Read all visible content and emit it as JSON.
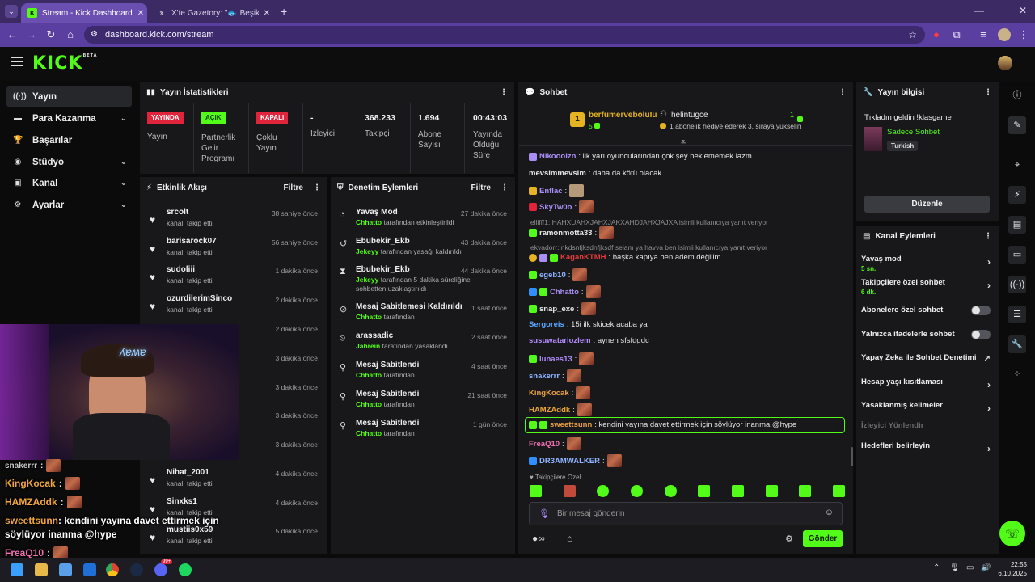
{
  "browser": {
    "tabs": [
      {
        "title": "Stream - Kick Dashboard"
      },
      {
        "title": "X'te Gazetory: \"🐟 Beşiktaşlı bi"
      }
    ],
    "url": "dashboard.kick.com/stream"
  },
  "brand": {
    "logo": "KICK",
    "beta": "BETA",
    "accent": "#53fc18"
  },
  "nav": {
    "items": [
      {
        "label": "Yayın",
        "icon": "broadcast-icon"
      },
      {
        "label": "Para Kazanma",
        "icon": "wallet-icon"
      },
      {
        "label": "Başarılar",
        "icon": "trophy-icon"
      },
      {
        "label": "Stüdyo",
        "icon": "studio-icon"
      },
      {
        "label": "Kanal",
        "icon": "channel-icon"
      },
      {
        "label": "Ayarlar",
        "icon": "gear-icon"
      }
    ]
  },
  "stats": {
    "title": "Yayın İstatistikleri",
    "live_badge": "YAYINDA",
    "live_label": "Yayın",
    "partner_badge": "AÇIK",
    "partner_label": "Partnerlik Gelir Programı",
    "multi_badge": "KAPALI",
    "multi_label": "Çoklu Yayın",
    "viewers_val": "-",
    "viewers_label": "İzleyici",
    "followers_val": "368.233",
    "followers_label": "Takipçi",
    "subs_val": "1.694",
    "subs_label": "Abone Sayısı",
    "uptime_val": "00:43:03",
    "uptime_label": "Yayında Olduğu Süre"
  },
  "activity": {
    "title": "Etkinlik Akışı",
    "filter": "Filtre",
    "rows": [
      {
        "name": "srcolt",
        "sub": "kanalı takip etti",
        "time": "38 saniye önce"
      },
      {
        "name": "barisarock07",
        "sub": "kanalı takip etti",
        "time": "56 saniye önce"
      },
      {
        "name": "sudoliii",
        "sub": "kanalı takip etti",
        "time": "1 dakika önce"
      },
      {
        "name": "ozurdilerimSinco",
        "sub": "kanalı takip etti",
        "time": "2 dakika önce"
      },
      {
        "name": "",
        "sub": "",
        "time": "2 dakika önce"
      },
      {
        "name": "",
        "sub": "",
        "time": "3 dakika önce"
      },
      {
        "name": "",
        "sub": "",
        "time": "3 dakika önce"
      },
      {
        "name": "",
        "sub": "",
        "time": "3 dakika önce"
      },
      {
        "name": "",
        "sub": "",
        "time": "3 dakika önce"
      },
      {
        "name": "Nihat_2001",
        "sub": "kanalı takip etti",
        "time": "4 dakika önce"
      },
      {
        "name": "Sinxks1",
        "sub": "kanalı takip etti",
        "time": "4 dakika önce"
      },
      {
        "name": "mustiis0x59",
        "sub": "kanalı takip etti",
        "time": "5 dakika önce"
      }
    ]
  },
  "moderation": {
    "title": "Denetim Eylemleri",
    "filter": "Filtre",
    "rows": [
      {
        "name": "Yavaş Mod",
        "actor": "Chhatto",
        "sub": " tarafından etkinleştirildi",
        "time": "27 dakika önce",
        "icon": "slow-mode-icon"
      },
      {
        "name": "Ebubekir_Ekb",
        "actor": "Jekeyy",
        "sub": " tarafından yasağı kaldırıldı",
        "time": "43 dakika önce",
        "icon": "undo-icon"
      },
      {
        "name": "Ebubekir_Ekb",
        "actor": "Jekeyy",
        "sub": " tarafından 5 dakika süreliğine sohbetten uzaklaştırıldı",
        "time": "44 dakika önce",
        "icon": "hourglass-icon"
      },
      {
        "name": "Mesaj Sabitlemesi Kaldırıldı",
        "actor": "Chhatto",
        "sub": " tarafından",
        "time": "1 saat önce",
        "icon": "unpin-icon"
      },
      {
        "name": "arassadic",
        "actor": "Jahrein",
        "sub": " tarafından yasaklandı",
        "time": "2 saat önce",
        "icon": "ban-icon"
      },
      {
        "name": "Mesaj Sabitlendi",
        "actor": "Chhatto",
        "sub": " tarafından",
        "time": "4 saat önce",
        "icon": "pin-icon"
      },
      {
        "name": "Mesaj Sabitlendi",
        "actor": "Chhatto",
        "sub": " tarafından",
        "time": "21 saat önce",
        "icon": "pin-icon"
      },
      {
        "name": "Mesaj Sabitlendi",
        "actor": "Chhatto",
        "sub": " tarafından",
        "time": "1 gün önce",
        "icon": "pin-icon"
      }
    ]
  },
  "chat": {
    "title": "Sohbet",
    "top_gifter_rank": "1",
    "top_gifter": "berfumerveboluIu",
    "top_gifter_count": "5",
    "top_second": "helintugce",
    "top_second_count": "1",
    "top_second_msg": "1 abonelik hediye ederek 3. sıraya yükselin",
    "messages": [
      {
        "user": "Nikooolzn",
        "color": "#a98ef5",
        "text": ": ilk yarı oyuncularından çok şey beklememek lazm",
        "emote": false
      },
      {
        "user": "mevsimmevsim",
        "color": "#e6e6e6",
        "text": ": daha da kötü olacak",
        "emote": false
      },
      {
        "user": "Enflac",
        "color": "#a98ef5",
        "text": ":",
        "emote": true
      },
      {
        "user": "SkyTw0o",
        "color": "#a98ef5",
        "text": ":",
        "emote": true
      },
      {
        "user": "ramonmotta33",
        "color": "#e6e6e6",
        "text": ":",
        "emote": true
      },
      {
        "user": "KaganKTMH",
        "color": "#e33a3a",
        "text": ": başka kapıya ben adem değilim",
        "emote": false
      },
      {
        "user": "egeb10",
        "color": "#8fb3ff",
        "text": ":",
        "emote": true
      },
      {
        "user": "Chhatto",
        "color": "#a98ef5",
        "text": ":",
        "emote": true
      },
      {
        "user": "snap_exe",
        "color": "#e6e6e6",
        "text": ":",
        "emote": true
      },
      {
        "user": "Sergoreis",
        "color": "#5aa8ff",
        "text": ": 15i ilk skicek acaba ya",
        "emote": false
      },
      {
        "user": "susuwatariozlem",
        "color": "#b48cff",
        "text": ": aynen sfsfdgdc",
        "emote": false
      },
      {
        "user": "lunaes13",
        "color": "#b48cff",
        "text": ":",
        "emote": true
      },
      {
        "user": "snakerrr",
        "color": "#8fb3ff",
        "text": ":",
        "emote": true
      },
      {
        "user": "KingKocak",
        "color": "#e8a13a",
        "text": ":",
        "emote": true
      },
      {
        "user": "HAMZAddk",
        "color": "#e8a13a",
        "text": ":",
        "emote": true
      },
      {
        "user": "sweettsunn",
        "color": "#e8a13a",
        "text": ": kendini yayına davet ettirmek için söylüyor inanma @hype",
        "emote": false
      },
      {
        "user": "FreaQ10",
        "color": "#f06fb0",
        "text": ":",
        "emote": true
      },
      {
        "user": "DR3AMWALKER",
        "color": "#8fb3ff",
        "text": ":",
        "emote": true
      }
    ],
    "reply1": "ellifff1: HAHXUAHXJAHXJAKXAHDJAHXJAJXA isimli kullanıcıya yanıt veriyor",
    "reply2": "ekvadorr: nkdsnfjksdnfjksdf selam ya havva ben isimli kullanıcıya yanıt veriyor",
    "followers_only": "Takipçilere Özel",
    "placeholder": "Bir mesaj gönderin",
    "send": "Gönder"
  },
  "stream_info": {
    "title": "Yayın bilgisi",
    "stream_title": "Tıkladın geldin !klasgame",
    "category": "Sadece Sohbet",
    "language": "Turkish",
    "edit": "Düzenle"
  },
  "channel_actions": {
    "title": "Kanal Eylemleri",
    "slow_mode": "Yavaş mod",
    "slow_mode_val": "5 sn.",
    "followers_chat": "Takipçilere özel sohbet",
    "followers_chat_val": "6 dk.",
    "subs_chat": "Abonelere özel sohbet",
    "emote_chat": "Yalnızca ifadelerle sohbet",
    "ai_mod": "Yapay Zeka ile Sohbet Denetimi",
    "age": "Hesap yaşı kısıtlaması",
    "banned_words": "Yasaklanmış kelimeler",
    "redirect": "İzleyici Yönlendir",
    "goals": "Hedefleri belirleyin"
  },
  "overlay": {
    "lines": [
      {
        "user": "snakerrr",
        "color": "#c8c8c8"
      },
      {
        "user": "KingKocak",
        "color": "#f0a63c"
      },
      {
        "user": "HAMZAddk",
        "color": "#f0a63c"
      },
      {
        "user": "sweettsunn",
        "color": "#f0a63c",
        "text": ": kendini yayına davet ettirmek için söylüyor inanma @hype"
      },
      {
        "user": "FreaQ10",
        "color": "#f06fb0"
      }
    ]
  },
  "taskbar": {
    "time": "22:55",
    "date": "6.10.2025",
    "notif_count": "99+"
  }
}
